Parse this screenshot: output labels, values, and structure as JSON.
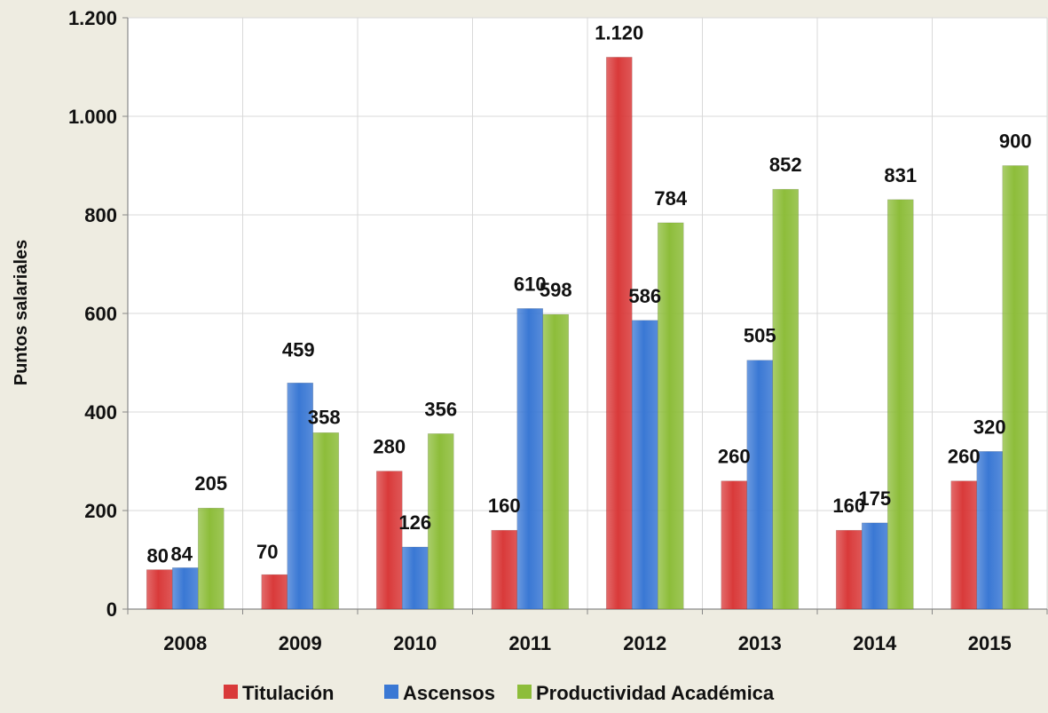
{
  "chart_data": {
    "type": "bar",
    "title": "",
    "xlabel": "",
    "ylabel": "Puntos salariales",
    "categories": [
      "2008",
      "2009",
      "2010",
      "2011",
      "2012",
      "2013",
      "2014",
      "2015"
    ],
    "series": [
      {
        "name": "Titulación",
        "color": "#d93a3a",
        "values": [
          80,
          70,
          280,
          160,
          1120,
          260,
          160,
          260
        ]
      },
      {
        "name": "Ascensos",
        "color": "#3a78d4",
        "values": [
          84,
          459,
          126,
          610,
          586,
          505,
          175,
          320
        ]
      },
      {
        "name": "Productividad Académica",
        "color": "#8dbd3a",
        "values": [
          205,
          358,
          356,
          598,
          784,
          852,
          831,
          900
        ]
      }
    ],
    "data_labels": [
      [
        "80",
        "70",
        "280",
        "160",
        "1.120",
        "260",
        "160",
        "260"
      ],
      [
        "84",
        "459",
        "126",
        "610",
        "586",
        "505",
        "175",
        "320"
      ],
      [
        "205",
        "358",
        "356",
        "598",
        "784",
        "852",
        "831",
        "900"
      ]
    ],
    "yticks": [
      0,
      200,
      400,
      600,
      800,
      1000,
      1200
    ],
    "ytick_labels": [
      "0",
      "200",
      "400",
      "600",
      "800",
      "1.000",
      "1.200"
    ],
    "ylim": [
      0,
      1200
    ],
    "grid": true,
    "legend_position": "bottom"
  }
}
